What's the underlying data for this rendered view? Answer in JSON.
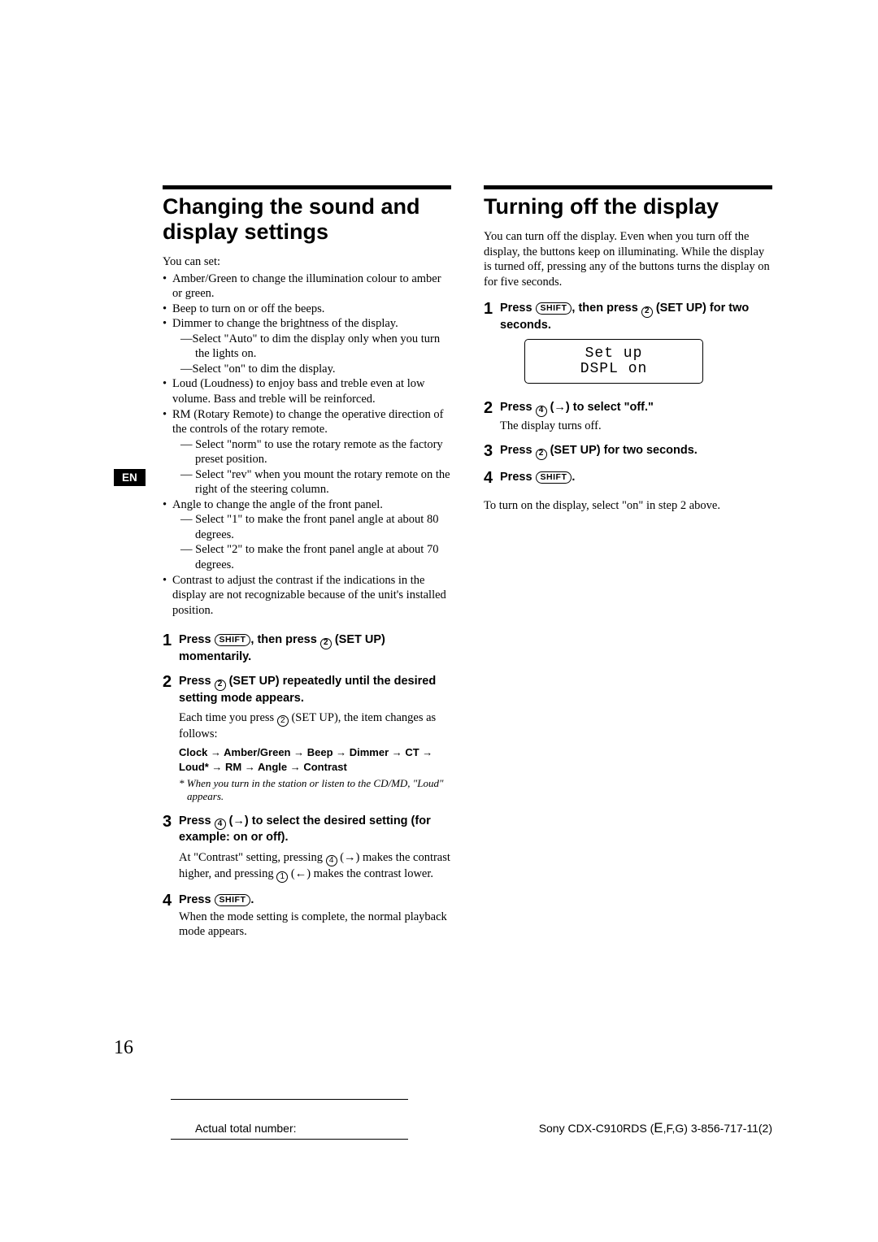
{
  "page_number": "16",
  "lang_tab": "EN",
  "left": {
    "title": "Changing the sound and display settings",
    "intro": "You can set:",
    "bullets": [
      {
        "text": "Amber/Green to change the illumination colour to amber or green."
      },
      {
        "text": "Beep to turn on or off the beeps."
      },
      {
        "text": "Dimmer to change the brightness of the display.",
        "subs": [
          "—Select \"Auto\" to dim the display only when you turn the lights on.",
          "—Select \"on\" to dim the display."
        ]
      },
      {
        "text": "Loud (Loudness) to enjoy bass and treble even at low volume. Bass and treble will be reinforced."
      },
      {
        "text": "RM (Rotary Remote) to change the operative direction of the controls of the rotary remote.",
        "subs": [
          "— Select \"norm\" to use the rotary remote as the factory preset position.",
          "— Select \"rev\" when you mount the rotary remote on the right of the steering column."
        ]
      },
      {
        "text": "Angle to change the angle of the front panel.",
        "subs": [
          "— Select \"1\" to make the front panel angle at about 80 degrees.",
          "— Select \"2\" to make the front panel angle at about 70 degrees."
        ]
      },
      {
        "text": "Contrast to adjust the contrast if the indications in the display are not recognizable because of the unit's installed position."
      }
    ],
    "steps": [
      {
        "num": "1",
        "bold_parts": [
          "Press ",
          "SHIFT",
          ", then press ",
          "2",
          " (SET UP) momentarily."
        ]
      },
      {
        "num": "2",
        "bold_parts": [
          "Press ",
          "2",
          " (SET UP) repeatedly until the desired setting mode appears."
        ],
        "detail_parts": [
          "Each time you press ",
          "2",
          " (SET UP), the item changes as follows:"
        ],
        "sequence": "Clock → Amber/Green → Beep → Dimmer → CT → Loud* → RM → Angle → Contrast",
        "footnote": "* When you turn in the station or listen to the CD/MD, \"Loud\" appears."
      },
      {
        "num": "3",
        "bold_parts": [
          "Press ",
          "4",
          " (→) to select the desired setting (for example: on or off)."
        ],
        "detail_parts": [
          "At \"Contrast\" setting, pressing ",
          "4",
          " (→) makes the contrast higher, and pressing ",
          "1",
          " (←) makes the contrast lower."
        ]
      },
      {
        "num": "4",
        "bold_parts": [
          "Press ",
          "SHIFT",
          "."
        ],
        "detail_plain": "When the mode setting is complete, the normal playback mode appears."
      }
    ]
  },
  "right": {
    "title": "Turning off the display",
    "intro": "You can turn off the display. Even when you turn off the display, the buttons keep on illuminating. While the display is turned off, pressing any of the buttons turns the display on for five seconds.",
    "steps": [
      {
        "num": "1",
        "bold_parts": [
          "Press ",
          "SHIFT",
          ", then press ",
          "2",
          " (SET UP) for two seconds."
        ],
        "lcd": [
          "Set up",
          "DSPL on"
        ]
      },
      {
        "num": "2",
        "bold_parts": [
          "Press ",
          "4",
          " (→) to select \"off.\""
        ],
        "detail_plain": "The display turns off."
      },
      {
        "num": "3",
        "bold_parts": [
          "Press ",
          "2",
          " (SET UP) for two seconds."
        ]
      },
      {
        "num": "4",
        "bold_parts": [
          "Press ",
          "SHIFT",
          "."
        ]
      }
    ],
    "note": "To turn on the display, select \"on\" in step 2 above."
  },
  "footer": {
    "atl": "Actual total number:",
    "model_prefix": "Sony CDX-C910RDS (",
    "model_big": "E",
    "model_suffix": ",F,G)  3-856-717-11(2)"
  }
}
